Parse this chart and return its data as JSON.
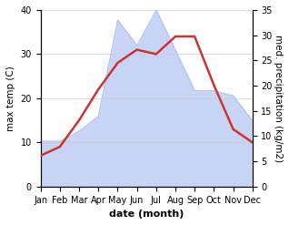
{
  "months": [
    "Jan",
    "Feb",
    "Mar",
    "Apr",
    "May",
    "Jun",
    "Jul",
    "Aug",
    "Sep",
    "Oct",
    "Nov",
    "Dec"
  ],
  "temperature": [
    7,
    9,
    15,
    22,
    28,
    31,
    30,
    34,
    34,
    23,
    13,
    10
  ],
  "precipitation": [
    9,
    9,
    11,
    14,
    33,
    28,
    35,
    27,
    19,
    19,
    18,
    13
  ],
  "temp_color": "#cc3333",
  "precip_color_fill": "#c8d4f5",
  "precip_color_edge": "#aabbee",
  "ylabel_left": "max temp (C)",
  "ylabel_right": "med. precipitation (kg/m2)",
  "xlabel": "date (month)",
  "ylim_left": [
    0,
    40
  ],
  "ylim_right": [
    0,
    35
  ],
  "yticks_left": [
    0,
    10,
    20,
    30,
    40
  ],
  "yticks_right": [
    0,
    5,
    10,
    15,
    20,
    25,
    30,
    35
  ],
  "bg_color": "#ffffff",
  "grid_color": "#cccccc",
  "temp_linewidth": 1.8,
  "xlabel_fontsize": 8,
  "ylabel_fontsize": 7.5,
  "tick_fontsize": 7
}
